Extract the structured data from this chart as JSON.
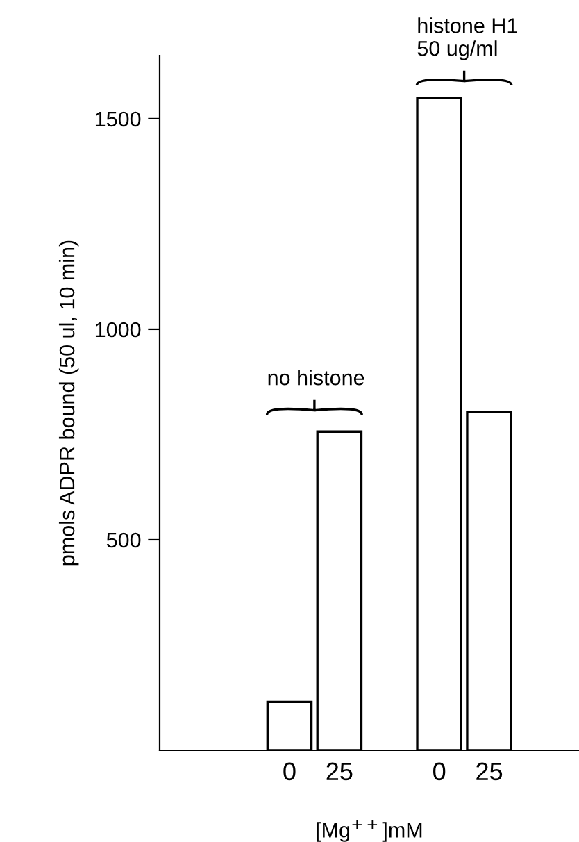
{
  "chart_data": {
    "type": "bar",
    "categories": [
      "0",
      "25",
      null,
      "0",
      "25"
    ],
    "values": [
      115,
      757,
      null,
      1549,
      803
    ],
    "color": "#ffffff",
    "ylim": [
      0,
      1650
    ],
    "yticks": [
      500,
      1000,
      1500
    ],
    "ylabel": "pmols ADPR bound (50 ul, 10 min)",
    "xlabel": "[Mg$^{++}$]mM",
    "annotations": [
      "no histone",
      "histone H1\n50 ug/ml"
    ],
    "grid": false
  }
}
